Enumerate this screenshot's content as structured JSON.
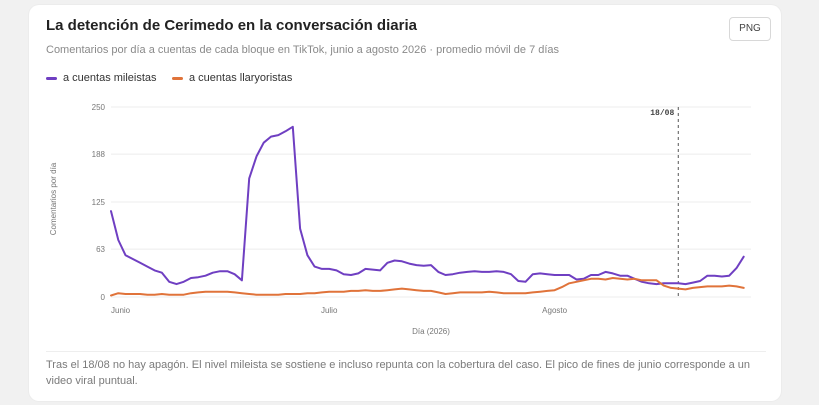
{
  "card": {
    "title": "La detención de Cerimedo en la conversación diaria",
    "subtitle": "Comentarios por día a cuentas de cada bloque en TikTok, junio a agosto 2026 · promedio móvil de 7 días",
    "export_label": "PNG",
    "note": "Tras el 18/08 no hay apagón. El nivel mileista se sostiene e incluso repunta con la cobertura del caso. El pico de fines de junio corresponde a un video viral puntual."
  },
  "colors": {
    "mileistas": "#6f3fc2",
    "llaryoristas": "#e0733a",
    "grid": "#ececec",
    "axis_text": "#777777",
    "marker": "#555555"
  },
  "chart_data": {
    "type": "line",
    "title": "La detención de Cerimedo en la conversación diaria",
    "xlabel": "Día (2026)",
    "ylabel": "Comentarios por día",
    "ylim": [
      0,
      250
    ],
    "yticks": [
      0,
      63,
      125,
      188,
      250
    ],
    "xlim": [
      0,
      88
    ],
    "xticks": [
      {
        "day": 0,
        "label": "Junio"
      },
      {
        "day": 30,
        "label": "Julio"
      },
      {
        "day": 61,
        "label": "Agosto"
      }
    ],
    "grid": true,
    "legend": "top-left",
    "marker": {
      "day": 78,
      "label": "18/08"
    },
    "series": [
      {
        "name": "a cuentas mileistas",
        "color_key": "mileistas",
        "points": [
          [
            0,
            113
          ],
          [
            1,
            75
          ],
          [
            2,
            55
          ],
          [
            3,
            50
          ],
          [
            4,
            45
          ],
          [
            5,
            40
          ],
          [
            6,
            35
          ],
          [
            7,
            32
          ],
          [
            8,
            20
          ],
          [
            9,
            17
          ],
          [
            10,
            20
          ],
          [
            11,
            25
          ],
          [
            12,
            26
          ],
          [
            13,
            28
          ],
          [
            14,
            32
          ],
          [
            15,
            34
          ],
          [
            16,
            34
          ],
          [
            17,
            30
          ],
          [
            18,
            22
          ],
          [
            19,
            156
          ],
          [
            20,
            185
          ],
          [
            21,
            203
          ],
          [
            22,
            211
          ],
          [
            23,
            213
          ],
          [
            24,
            218
          ],
          [
            25,
            224
          ],
          [
            26,
            90
          ],
          [
            27,
            55
          ],
          [
            28,
            40
          ],
          [
            29,
            37
          ],
          [
            30,
            37
          ],
          [
            31,
            35
          ],
          [
            32,
            30
          ],
          [
            33,
            29
          ],
          [
            34,
            31
          ],
          [
            35,
            37
          ],
          [
            36,
            36
          ],
          [
            37,
            35
          ],
          [
            38,
            45
          ],
          [
            39,
            48
          ],
          [
            40,
            47
          ],
          [
            41,
            44
          ],
          [
            42,
            42
          ],
          [
            43,
            41
          ],
          [
            44,
            42
          ],
          [
            45,
            33
          ],
          [
            46,
            29
          ],
          [
            47,
            30
          ],
          [
            48,
            32
          ],
          [
            49,
            33
          ],
          [
            50,
            34
          ],
          [
            51,
            33
          ],
          [
            52,
            33
          ],
          [
            53,
            34
          ],
          [
            54,
            33
          ],
          [
            55,
            30
          ],
          [
            56,
            21
          ],
          [
            57,
            20
          ],
          [
            58,
            30
          ],
          [
            59,
            31
          ],
          [
            60,
            30
          ],
          [
            61,
            29
          ],
          [
            62,
            29
          ],
          [
            63,
            29
          ],
          [
            64,
            23
          ],
          [
            65,
            24
          ],
          [
            66,
            29
          ],
          [
            67,
            29
          ],
          [
            68,
            33
          ],
          [
            69,
            31
          ],
          [
            70,
            28
          ],
          [
            71,
            28
          ],
          [
            72,
            24
          ],
          [
            73,
            20
          ],
          [
            74,
            18
          ],
          [
            75,
            17
          ],
          [
            76,
            18
          ],
          [
            77,
            18
          ],
          [
            78,
            18
          ],
          [
            79,
            17
          ],
          [
            80,
            19
          ],
          [
            81,
            21
          ],
          [
            82,
            28
          ],
          [
            83,
            28
          ],
          [
            84,
            27
          ],
          [
            85,
            28
          ],
          [
            86,
            38
          ],
          [
            87,
            53
          ]
        ]
      },
      {
        "name": "a cuentas llaryoristas",
        "color_key": "llaryoristas",
        "points": [
          [
            0,
            2
          ],
          [
            1,
            5
          ],
          [
            2,
            4
          ],
          [
            3,
            4
          ],
          [
            4,
            4
          ],
          [
            5,
            3
          ],
          [
            6,
            3
          ],
          [
            7,
            4
          ],
          [
            8,
            3
          ],
          [
            9,
            3
          ],
          [
            10,
            3
          ],
          [
            11,
            5
          ],
          [
            12,
            6
          ],
          [
            13,
            7
          ],
          [
            14,
            7
          ],
          [
            15,
            7
          ],
          [
            16,
            7
          ],
          [
            17,
            6
          ],
          [
            18,
            5
          ],
          [
            19,
            4
          ],
          [
            20,
            3
          ],
          [
            21,
            3
          ],
          [
            22,
            3
          ],
          [
            23,
            3
          ],
          [
            24,
            4
          ],
          [
            25,
            4
          ],
          [
            26,
            4
          ],
          [
            27,
            5
          ],
          [
            28,
            5
          ],
          [
            29,
            6
          ],
          [
            30,
            7
          ],
          [
            31,
            7
          ],
          [
            32,
            7
          ],
          [
            33,
            8
          ],
          [
            34,
            8
          ],
          [
            35,
            9
          ],
          [
            36,
            8
          ],
          [
            37,
            8
          ],
          [
            38,
            9
          ],
          [
            39,
            10
          ],
          [
            40,
            11
          ],
          [
            41,
            10
          ],
          [
            42,
            9
          ],
          [
            43,
            8
          ],
          [
            44,
            8
          ],
          [
            45,
            6
          ],
          [
            46,
            4
          ],
          [
            47,
            5
          ],
          [
            48,
            6
          ],
          [
            49,
            6
          ],
          [
            50,
            6
          ],
          [
            51,
            6
          ],
          [
            52,
            7
          ],
          [
            53,
            6
          ],
          [
            54,
            5
          ],
          [
            55,
            5
          ],
          [
            56,
            5
          ],
          [
            57,
            5
          ],
          [
            58,
            6
          ],
          [
            59,
            7
          ],
          [
            60,
            8
          ],
          [
            61,
            9
          ],
          [
            62,
            13
          ],
          [
            63,
            18
          ],
          [
            64,
            20
          ],
          [
            65,
            22
          ],
          [
            66,
            24
          ],
          [
            67,
            24
          ],
          [
            68,
            23
          ],
          [
            69,
            25
          ],
          [
            70,
            24
          ],
          [
            71,
            23
          ],
          [
            72,
            24
          ],
          [
            73,
            22
          ],
          [
            74,
            22
          ],
          [
            75,
            22
          ],
          [
            76,
            15
          ],
          [
            77,
            12
          ],
          [
            78,
            11
          ],
          [
            79,
            10
          ],
          [
            80,
            12
          ],
          [
            81,
            13
          ],
          [
            82,
            14
          ],
          [
            83,
            14
          ],
          [
            84,
            14
          ],
          [
            85,
            15
          ],
          [
            86,
            14
          ],
          [
            87,
            12
          ]
        ]
      }
    ]
  }
}
